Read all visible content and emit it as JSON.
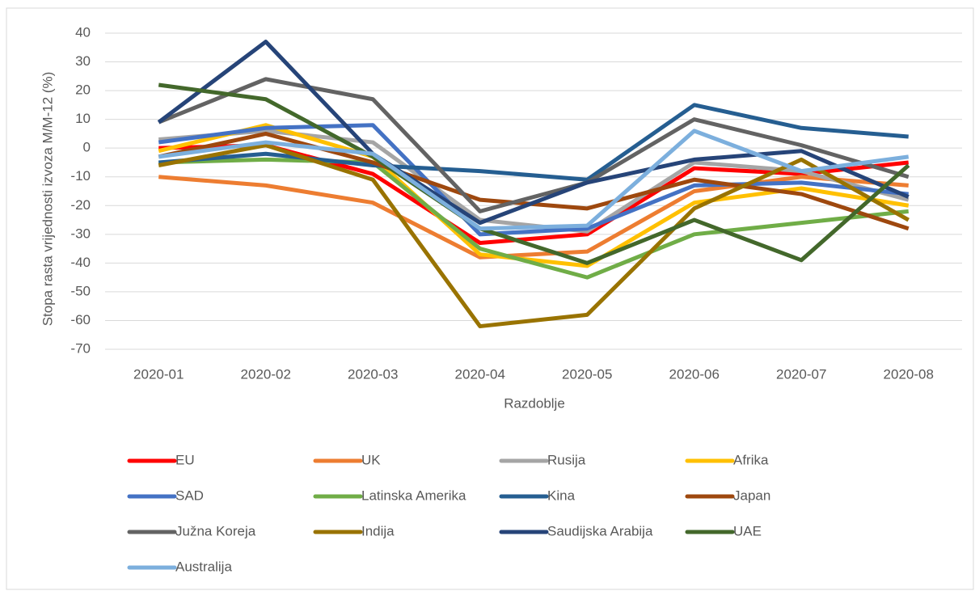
{
  "chart_data": {
    "type": "line",
    "y_label": "Stopa rasta vrijednosti izvoza M/M-12 (%)",
    "x_label": "Razdoblje",
    "categories": [
      "2020-01",
      "2020-02",
      "2020-03",
      "2020-04",
      "2020-05",
      "2020-06",
      "2020-07",
      "2020-08"
    ],
    "ylim": [
      -70,
      40
    ],
    "yticks": [
      -70,
      -60,
      -50,
      -40,
      -30,
      -20,
      -10,
      0,
      10,
      20,
      30,
      40
    ],
    "grid": true,
    "legend": "bottom",
    "series": [
      {
        "name": "EU",
        "color": "#ff0000",
        "values": [
          0,
          1,
          -9,
          -33,
          -30,
          -7,
          -9,
          -5
        ]
      },
      {
        "name": "UK",
        "color": "#ed7d31",
        "values": [
          -10,
          -13,
          -19,
          -38,
          -36,
          -15,
          -10,
          -13
        ]
      },
      {
        "name": "Rusija",
        "color": "#a5a5a5",
        "values": [
          3,
          6,
          2,
          -25,
          -29,
          -5,
          -8,
          -18
        ]
      },
      {
        "name": "Afrika",
        "color": "#ffc000",
        "values": [
          -1,
          8,
          -3,
          -37,
          -41,
          -19,
          -14,
          -20
        ]
      },
      {
        "name": "SAD",
        "color": "#4472c4",
        "values": [
          2,
          7,
          8,
          -30,
          -28,
          -13,
          -12,
          -16
        ]
      },
      {
        "name": "Latinska Amerika",
        "color": "#70ad47",
        "values": [
          -5,
          -4,
          -5,
          -35,
          -45,
          -30,
          -26,
          -22
        ]
      },
      {
        "name": "Kina",
        "color": "#255e91",
        "values": [
          -5,
          -2,
          -6,
          -8,
          -11,
          15,
          7,
          4
        ]
      },
      {
        "name": "Japan",
        "color": "#9e480e",
        "values": [
          -3,
          5,
          -5,
          -18,
          -21,
          -11,
          -16,
          -28
        ]
      },
      {
        "name": "Južna Koreja",
        "color": "#636363",
        "values": [
          9,
          24,
          17,
          -22,
          -12,
          10,
          1,
          -10
        ]
      },
      {
        "name": "Indija",
        "color": "#997300",
        "values": [
          -6,
          1,
          -11,
          -62,
          -58,
          -21,
          -4,
          -25
        ]
      },
      {
        "name": "Saudijska Arabija",
        "color": "#264478",
        "values": [
          9,
          37,
          -2,
          -26,
          -12,
          -4,
          -1,
          -17
        ]
      },
      {
        "name": "UAE",
        "color": "#43682b",
        "values": [
          22,
          17,
          -3,
          -28,
          -40,
          -25,
          -39,
          -6
        ]
      },
      {
        "name": "Australija",
        "color": "#7cafdd",
        "values": [
          -3,
          2,
          -2,
          -28,
          -27,
          6,
          -8,
          -3
        ]
      }
    ]
  }
}
